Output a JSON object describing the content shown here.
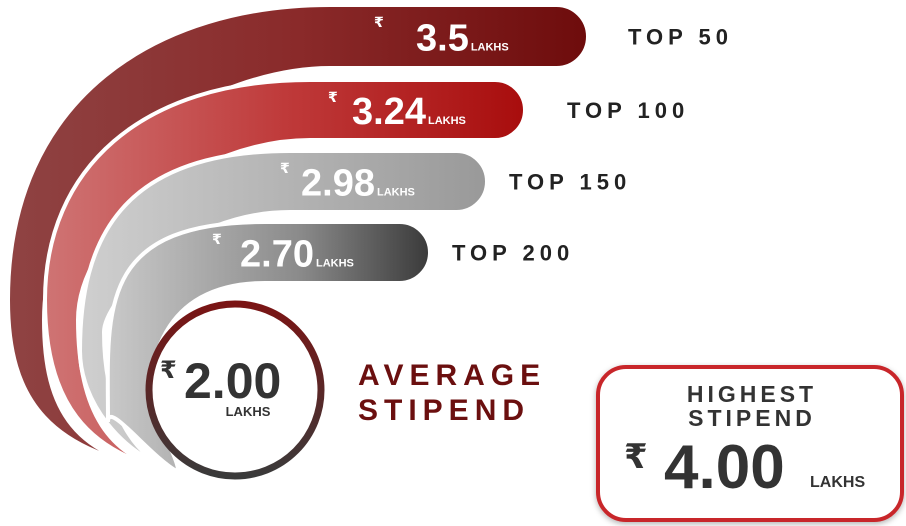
{
  "tiers": [
    {
      "symbol": "₹",
      "amount": "3.5",
      "unit": "LAKHS",
      "label": "TOP 50"
    },
    {
      "symbol": "₹",
      "amount": "3.24",
      "unit": "LAKHS",
      "label": "TOP 100"
    },
    {
      "symbol": "₹",
      "amount": "2.98",
      "unit": "LAKHS",
      "label": "TOP 150"
    },
    {
      "symbol": "₹",
      "amount": "2.70",
      "unit": "LAKHS",
      "label": "TOP 200"
    }
  ],
  "average": {
    "symbol": "₹",
    "amount": "2.00",
    "unit": "LAKHS",
    "label": [
      "AVERAGE",
      "STIPEND"
    ]
  },
  "highest": {
    "title": [
      "HIGHEST",
      "STIPEND"
    ],
    "symbol": "₹",
    "amount": "4.00",
    "unit": "LAKHS"
  }
}
